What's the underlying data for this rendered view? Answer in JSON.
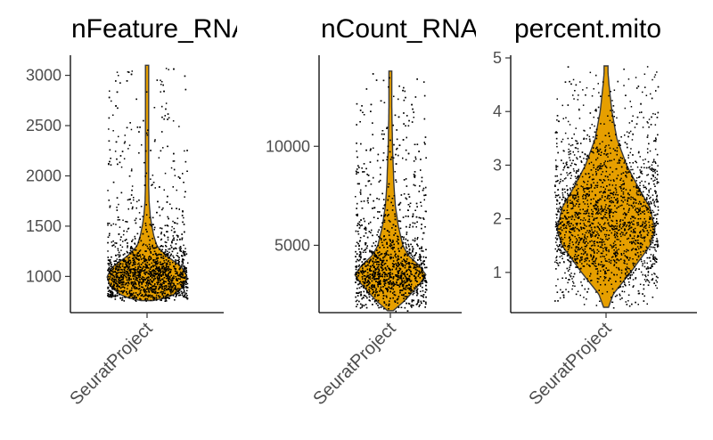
{
  "chart_data": [
    {
      "type": "violin",
      "title": "nFeature_RNA",
      "categories": [
        "SeuratProject"
      ],
      "ylim": [
        640,
        3200
      ],
      "yticks": [
        1000,
        1500,
        2000,
        2500,
        3000
      ],
      "summary": {
        "min": 760,
        "median": 1000,
        "max": 3100,
        "n_cells": 2700
      },
      "profile": [
        [
          760,
          0.15
        ],
        [
          800,
          0.6
        ],
        [
          900,
          0.92
        ],
        [
          1000,
          1.0
        ],
        [
          1100,
          0.85
        ],
        [
          1200,
          0.5
        ],
        [
          1300,
          0.25
        ],
        [
          1400,
          0.17
        ],
        [
          1500,
          0.12
        ],
        [
          1600,
          0.08
        ],
        [
          1750,
          0.05
        ],
        [
          2000,
          0.035
        ],
        [
          2500,
          0.025
        ],
        [
          3000,
          0.02
        ],
        [
          3100,
          0.015
        ]
      ],
      "color": "#e69f00"
    },
    {
      "type": "violin",
      "title": "nCount_RNA",
      "categories": [
        "SeuratProject"
      ],
      "ylim": [
        1600,
        14600
      ],
      "yticks": [
        5000,
        10000
      ],
      "summary": {
        "min": 1700,
        "median": 3500,
        "max": 13800,
        "n_cells": 2700
      },
      "profile": [
        [
          1700,
          0.08
        ],
        [
          2200,
          0.4
        ],
        [
          3000,
          0.8
        ],
        [
          3500,
          1.0
        ],
        [
          4000,
          0.8
        ],
        [
          4500,
          0.5
        ],
        [
          5000,
          0.35
        ],
        [
          6000,
          0.22
        ],
        [
          7000,
          0.14
        ],
        [
          8000,
          0.1
        ],
        [
          10000,
          0.06
        ],
        [
          12000,
          0.04
        ],
        [
          13800,
          0.02
        ]
      ],
      "color": "#e69f00"
    },
    {
      "type": "violin",
      "title": "percent.mito",
      "categories": [
        "SeuratProject"
      ],
      "ylim": [
        0.25,
        5.05
      ],
      "yticks": [
        1,
        2,
        3,
        4,
        5
      ],
      "summary": {
        "min": 0.35,
        "median": 1.9,
        "max": 4.85,
        "n_cells": 2700
      },
      "profile": [
        [
          0.35,
          0.05
        ],
        [
          0.6,
          0.15
        ],
        [
          1.0,
          0.5
        ],
        [
          1.5,
          0.9
        ],
        [
          1.8,
          1.0
        ],
        [
          2.2,
          0.9
        ],
        [
          2.6,
          0.65
        ],
        [
          3.0,
          0.42
        ],
        [
          3.5,
          0.22
        ],
        [
          4.0,
          0.12
        ],
        [
          4.5,
          0.06
        ],
        [
          4.85,
          0.03
        ]
      ],
      "color": "#e69f00"
    }
  ]
}
